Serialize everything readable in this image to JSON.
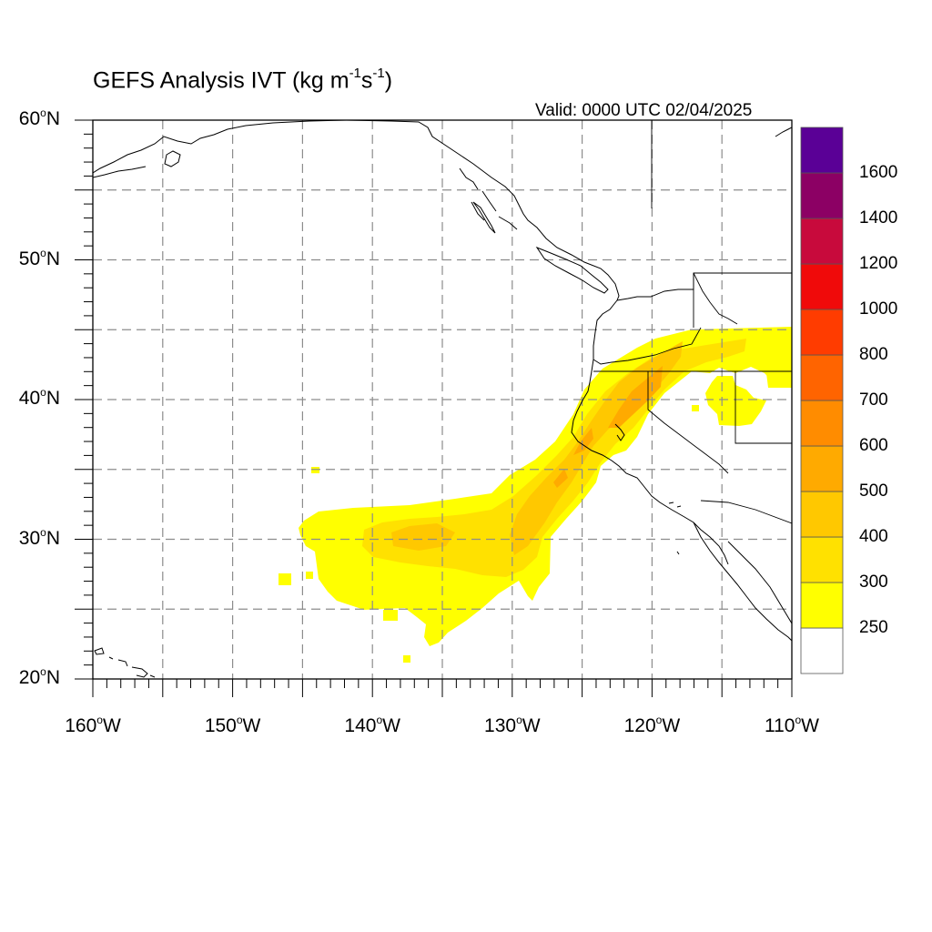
{
  "title": {
    "main": "GEFS Analysis IVT (kg m",
    "exp1": "-1",
    "mid": "s",
    "exp2": "-1",
    "close": ")"
  },
  "valid_time": "Valid: 0000 UTC 02/04/2025",
  "map": {
    "projection": "cylindrical equidistant",
    "lon_range": [
      -160,
      -110
    ],
    "lat_range": [
      20,
      60
    ],
    "lat_ticks": [
      {
        "value": 60,
        "num": "60",
        "hemi": "N"
      },
      {
        "value": 50,
        "num": "50",
        "hemi": "N"
      },
      {
        "value": 40,
        "num": "40",
        "hemi": "N"
      },
      {
        "value": 30,
        "num": "30",
        "hemi": "N"
      },
      {
        "value": 20,
        "num": "20",
        "hemi": "N"
      }
    ],
    "lon_ticks": [
      {
        "value": -160,
        "num": "160",
        "hemi": "W"
      },
      {
        "value": -150,
        "num": "150",
        "hemi": "W"
      },
      {
        "value": -140,
        "num": "140",
        "hemi": "W"
      },
      {
        "value": -130,
        "num": "130",
        "hemi": "W"
      },
      {
        "value": -120,
        "num": "120",
        "hemi": "W"
      },
      {
        "value": -110,
        "num": "110",
        "hemi": "W"
      }
    ],
    "gridlines": "dashed every 5 degrees"
  },
  "colorbar": {
    "levels": [
      "250",
      "300",
      "400",
      "500",
      "600",
      "700",
      "800",
      "1000",
      "1200",
      "1400",
      "1600"
    ],
    "colors": [
      "#ffffff",
      "#ffff00",
      "#ffe100",
      "#ffc800",
      "#ffaa00",
      "#ff8c00",
      "#ff6400",
      "#ff3c00",
      "#f00a0a",
      "#c80a3c",
      "#8c0064",
      "#5a0096"
    ]
  },
  "palette": {
    "ivt_250": "#ffff00",
    "ivt_300": "#ffe100",
    "ivt_400": "#ffc800",
    "ivt_500": "#ffaa00",
    "coast": "#000000",
    "grid": "#8c8c8c"
  }
}
